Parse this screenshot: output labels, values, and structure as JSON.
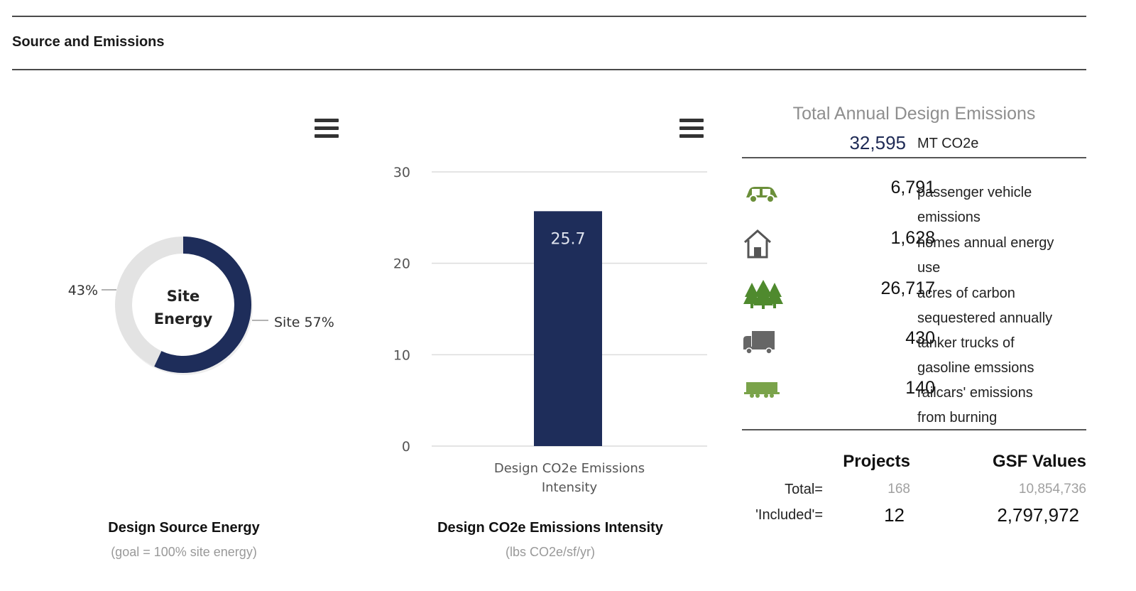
{
  "section": {
    "title": "Source and Emissions"
  },
  "donut": {
    "center_line1": "Site",
    "center_line2": "Energy",
    "label_left": "43%",
    "label_right": "Site 57%",
    "title": "Design Source Energy",
    "subtitle": "(goal = 100% site energy)",
    "colors": {
      "site": "#1e2d5a",
      "other": "#e3e3e3"
    }
  },
  "bar": {
    "title": "Design CO2e Emissions Intensity",
    "subtitle": "(lbs CO2e/sf/yr)",
    "category_line1": "Design CO2e Emissions",
    "category_line2": "Intensity",
    "bar_color": "#1e2d5a"
  },
  "chart_data": [
    {
      "type": "pie",
      "labels": [
        "Site",
        ""
      ],
      "values": [
        57,
        43
      ],
      "title": "Design Source Energy",
      "subtitle": "(goal = 100% site energy)"
    },
    {
      "type": "bar",
      "categories": [
        "Design CO2e Emissions Intensity"
      ],
      "values": [
        25.7
      ],
      "data_labels": [
        "25.7"
      ],
      "ylim": [
        0,
        30
      ],
      "yticks": [
        "0",
        "10",
        "20",
        "30"
      ],
      "grid": true,
      "title": "Design CO2e Emissions Intensity",
      "subtitle": "(lbs CO2e/sf/yr)"
    }
  ],
  "emissions": {
    "title": "Total Annual Design Emissions",
    "total_value": "32,595",
    "total_unit": "MT CO2e",
    "equivalents": [
      {
        "icon": "car-icon",
        "value": "6,791",
        "line1": "passenger vehicle",
        "line2": "emissions",
        "color": "#6b8f3a"
      },
      {
        "icon": "house-icon",
        "value": "1,628",
        "line1": "homes annual energy",
        "line2": "use",
        "color": "#555555"
      },
      {
        "icon": "trees-icon",
        "value": "26,717",
        "line1": "acres of carbon",
        "line2": "sequestered annually",
        "color": "#4f8a2e"
      },
      {
        "icon": "truck-icon",
        "value": "430",
        "line1": "tanker trucks of",
        "line2": "gasoline emssions",
        "color": "#666666"
      },
      {
        "icon": "railcar-icon",
        "value": "140",
        "line1": "railcars' emissions",
        "line2": "from burning",
        "color": "#7aa34a"
      }
    ]
  },
  "summary": {
    "col_projects": "Projects",
    "col_gsf": "GSF Values",
    "rows": [
      {
        "label": "Total=",
        "projects": "168",
        "gsf": "10,854,736"
      },
      {
        "label": "'Included'=",
        "projects": "12",
        "gsf": "2,797,972"
      }
    ]
  }
}
